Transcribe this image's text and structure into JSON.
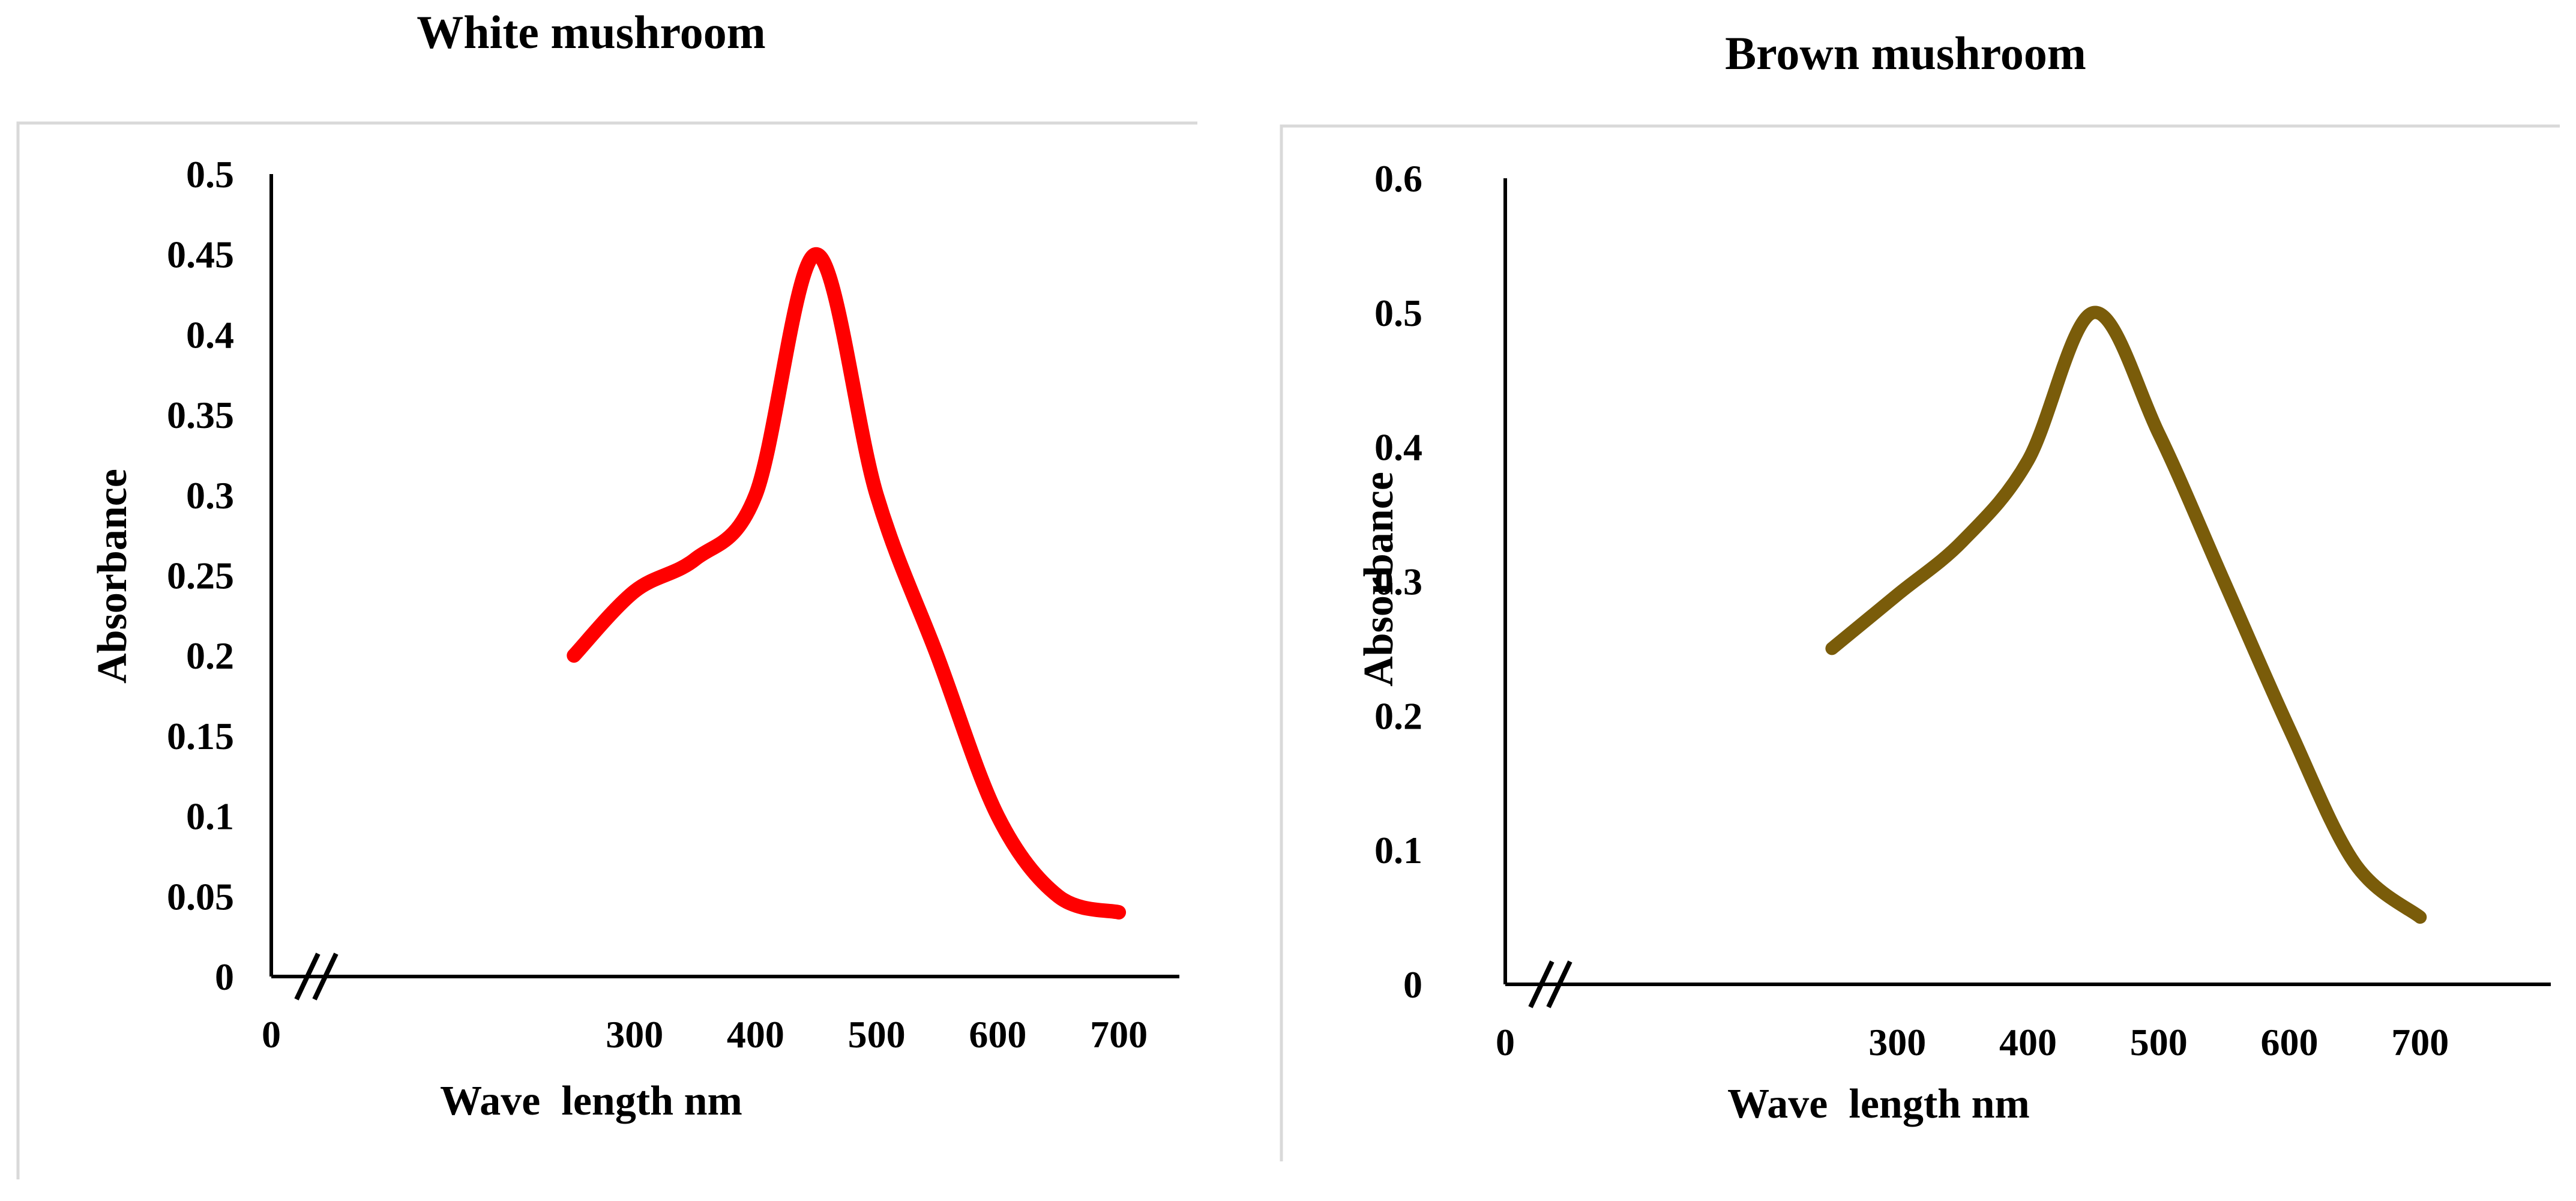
{
  "chart_data": [
    {
      "type": "line",
      "title": "White mushroom",
      "xlabel": "Wave  length nm",
      "ylabel": "Absorbance",
      "xlim": [
        0,
        750
      ],
      "ylim": [
        0,
        0.5
      ],
      "x_ticks": [
        0,
        300,
        400,
        500,
        600,
        700
      ],
      "y_ticks": [
        0,
        0.05,
        0.1,
        0.15,
        0.2,
        0.25,
        0.3,
        0.35,
        0.4,
        0.45,
        0.5
      ],
      "axis_break": true,
      "grid": false,
      "series": [
        {
          "name": "White mushroom",
          "color": "#ff0000",
          "x": [
            250,
            300,
            350,
            400,
            450,
            500,
            550,
            600,
            650,
            700
          ],
          "values": [
            0.2,
            0.24,
            0.26,
            0.3,
            0.45,
            0.3,
            0.2,
            0.1,
            0.05,
            0.04
          ]
        }
      ]
    },
    {
      "type": "line",
      "title": "Brown mushroom",
      "xlabel": "Wave  length nm",
      "ylabel": "Absorbance",
      "xlim": [
        0,
        800
      ],
      "ylim": [
        0,
        0.6
      ],
      "x_ticks": [
        0,
        300,
        400,
        500,
        600,
        700
      ],
      "y_ticks": [
        0,
        0.1,
        0.2,
        0.3,
        0.4,
        0.5,
        0.6
      ],
      "axis_break": true,
      "grid": false,
      "series": [
        {
          "name": "Brown mushroom",
          "color": "#7a5c0a",
          "x": [
            250,
            300,
            350,
            400,
            450,
            500,
            550,
            600,
            650,
            700
          ],
          "values": [
            0.25,
            0.29,
            0.33,
            0.39,
            0.5,
            0.41,
            0.3,
            0.19,
            0.09,
            0.05
          ]
        }
      ]
    }
  ]
}
